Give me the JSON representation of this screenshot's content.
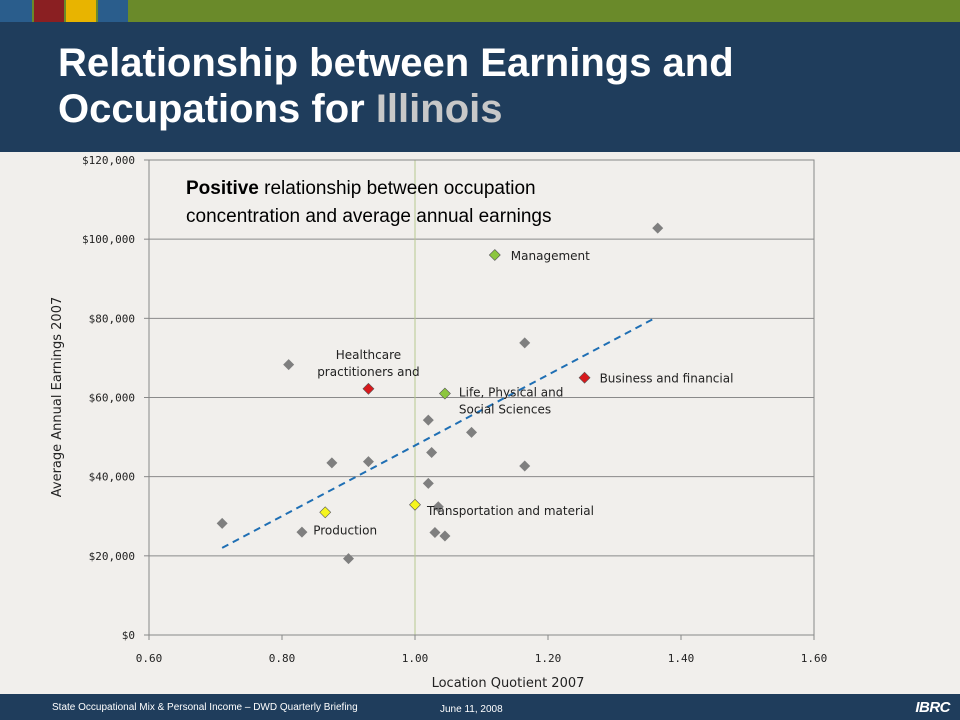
{
  "slide": {
    "title_prefix": "Relationship between Earnings and Occupations for ",
    "title_highlight": "Illinois",
    "footer_left": "State Occupational Mix & Personal Income – DWD Quarterly Briefing",
    "footer_date": "June 11, 2008",
    "footer_logo": "IBRC"
  },
  "colors": {
    "header": "#1f3d5c",
    "topbar": "#6a8a2a",
    "point_gray": "#7f7f7f",
    "point_green": "#8cc63e",
    "point_red": "#d7191c",
    "point_yellow": "#f5f51e",
    "trendline": "#1f6fb4",
    "reference_line": "#b8c890"
  },
  "chart_data": {
    "type": "scatter",
    "xlabel": "Location Quotient 2007",
    "ylabel": "Average Annual Earnings 2007",
    "xlim": [
      0.6,
      1.6
    ],
    "ylim": [
      0,
      120000
    ],
    "x_ticks": [
      0.6,
      0.8,
      1.0,
      1.2,
      1.4,
      1.6
    ],
    "x_tick_labels": [
      "0.60",
      "0.80",
      "1.00",
      "1.20",
      "1.40",
      "1.60"
    ],
    "y_ticks": [
      0,
      20000,
      40000,
      60000,
      80000,
      100000,
      120000
    ],
    "y_tick_labels": [
      "$0",
      "$20,000",
      "$40,000",
      "$60,000",
      "$80,000",
      "$100,000",
      "$120,000"
    ],
    "grid": "horizontal",
    "reference_line_x": 1.0,
    "annotation_bold": "Positive",
    "annotation_line1": " relationship between occupation",
    "annotation_line2": "concentration and average annual earnings",
    "trendline": {
      "x": [
        0.71,
        1.36
      ],
      "y": [
        22000,
        80000
      ]
    },
    "points": [
      {
        "x": 0.71,
        "y": 28200,
        "color": "gray"
      },
      {
        "x": 0.81,
        "y": 68300,
        "color": "gray"
      },
      {
        "x": 0.83,
        "y": 26000,
        "color": "gray"
      },
      {
        "x": 0.875,
        "y": 43500,
        "color": "gray"
      },
      {
        "x": 0.9,
        "y": 19300,
        "color": "gray"
      },
      {
        "x": 0.93,
        "y": 43800,
        "color": "gray"
      },
      {
        "x": 1.02,
        "y": 54300,
        "color": "gray"
      },
      {
        "x": 1.02,
        "y": 38300,
        "color": "gray"
      },
      {
        "x": 1.025,
        "y": 46100,
        "color": "gray"
      },
      {
        "x": 1.035,
        "y": 32400,
        "color": "gray"
      },
      {
        "x": 1.03,
        "y": 25900,
        "color": "gray"
      },
      {
        "x": 1.045,
        "y": 25000,
        "color": "gray"
      },
      {
        "x": 1.085,
        "y": 51200,
        "color": "gray"
      },
      {
        "x": 1.165,
        "y": 73800,
        "color": "gray"
      },
      {
        "x": 1.165,
        "y": 42700,
        "color": "gray"
      },
      {
        "x": 1.365,
        "y": 102800,
        "color": "gray"
      },
      {
        "x": 1.12,
        "y": 96000,
        "color": "green",
        "label": "Management"
      },
      {
        "x": 1.045,
        "y": 61000,
        "color": "green",
        "label": [
          "Life, Physical and",
          "Social Sciences"
        ]
      },
      {
        "x": 0.93,
        "y": 62200,
        "color": "red",
        "label": [
          "Healthcare",
          "practitioners and"
        ]
      },
      {
        "x": 1.255,
        "y": 65000,
        "color": "red",
        "label": "Business and financial"
      },
      {
        "x": 0.865,
        "y": 31000,
        "color": "yellow",
        "label": "Production"
      },
      {
        "x": 1.0,
        "y": 32900,
        "color": "yellow",
        "label": "Transportation and material"
      }
    ]
  }
}
